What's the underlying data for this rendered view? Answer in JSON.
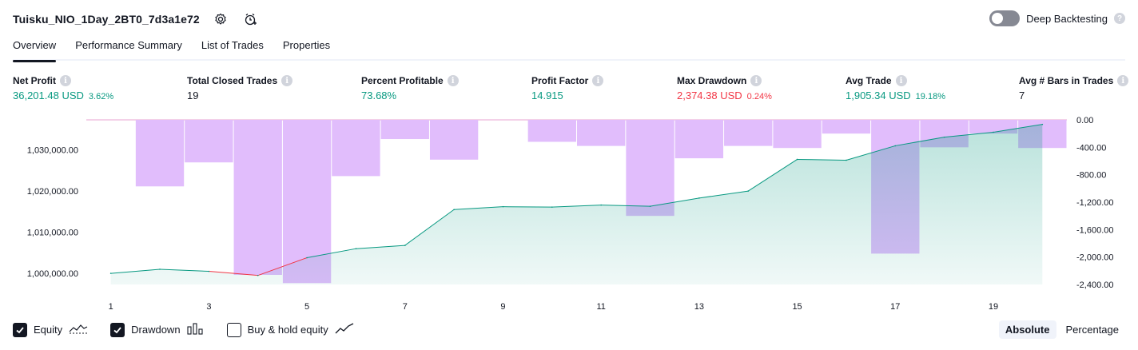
{
  "header": {
    "title": "Tuisku_NIO_1Day_2BT0_7d3a1e72",
    "deep_backtesting_label": "Deep Backtesting",
    "help_glyph": "?",
    "toggle_on": false
  },
  "tabs": [
    {
      "label": "Overview",
      "active": true
    },
    {
      "label": "Performance Summary",
      "active": false
    },
    {
      "label": "List of Trades",
      "active": false
    },
    {
      "label": "Properties",
      "active": false
    }
  ],
  "info_glyph": "i",
  "metrics": [
    {
      "label": "Net Profit",
      "value": "36,201.48 USD",
      "sub": "3.62%",
      "tone": "pos"
    },
    {
      "label": "Total Closed Trades",
      "value": "19",
      "sub": "",
      "tone": "neutral"
    },
    {
      "label": "Percent Profitable",
      "value": "73.68%",
      "sub": "",
      "tone": "pos"
    },
    {
      "label": "Profit Factor",
      "value": "14.915",
      "sub": "",
      "tone": "pos"
    },
    {
      "label": "Max Drawdown",
      "value": "2,374.38 USD",
      "sub": "0.24%",
      "tone": "neg"
    },
    {
      "label": "Avg Trade",
      "value": "1,905.34 USD",
      "sub": "19.18%",
      "tone": "pos"
    },
    {
      "label": "Avg # Bars in Trades",
      "value": "7",
      "sub": "",
      "tone": "neutral"
    }
  ],
  "chart_data": {
    "type": "line",
    "x": [
      1,
      2,
      3,
      4,
      5,
      6,
      7,
      8,
      9,
      10,
      11,
      12,
      13,
      14,
      15,
      16,
      17,
      18,
      19,
      20
    ],
    "x_ticks": [
      "1",
      "3",
      "5",
      "7",
      "9",
      "11",
      "13",
      "15",
      "17",
      "19"
    ],
    "series": [
      {
        "name": "Equity",
        "axis": "left",
        "color": "#089981",
        "values": [
          1000000,
          1001000,
          1000500,
          999500,
          1003800,
          1006000,
          1006800,
          1015500,
          1016200,
          1016100,
          1016600,
          1016300,
          1018300,
          1020000,
          1027700,
          1027500,
          1031000,
          1033100,
          1034300,
          1036201
        ]
      },
      {
        "name": "Drawdown",
        "type": "bar",
        "axis": "right",
        "color": "#e1bdfc",
        "values": [
          0,
          -970,
          -620,
          -2260,
          -2380,
          -820,
          -280,
          -580,
          0,
          -320,
          -380,
          -1400,
          -560,
          -380,
          -410,
          -200,
          -1950,
          -400,
          -200,
          -410
        ]
      }
    ],
    "y_left_ticks": [
      "1,000,000.00",
      "1,010,000.00",
      "1,020,000.00",
      "1,030,000.00"
    ],
    "y_left_range": [
      997300,
      1037300
    ],
    "y_right_ticks": [
      "0.00",
      "-400.00",
      "-800.00",
      "-1,200.00",
      "-1,600.00",
      "-2,000.00",
      "-2,400.00"
    ],
    "y_right_range": [
      -2400,
      0
    ],
    "grid": false
  },
  "legend": [
    {
      "label": "Equity",
      "checked": true,
      "icon": "equity-line-icon"
    },
    {
      "label": "Drawdown",
      "checked": true,
      "icon": "drawdown-bars-icon"
    },
    {
      "label": "Buy & hold equity",
      "checked": false,
      "icon": "buy-hold-line-icon"
    }
  ],
  "mode": {
    "absolute": "Absolute",
    "percentage": "Percentage",
    "selected": "Absolute"
  }
}
